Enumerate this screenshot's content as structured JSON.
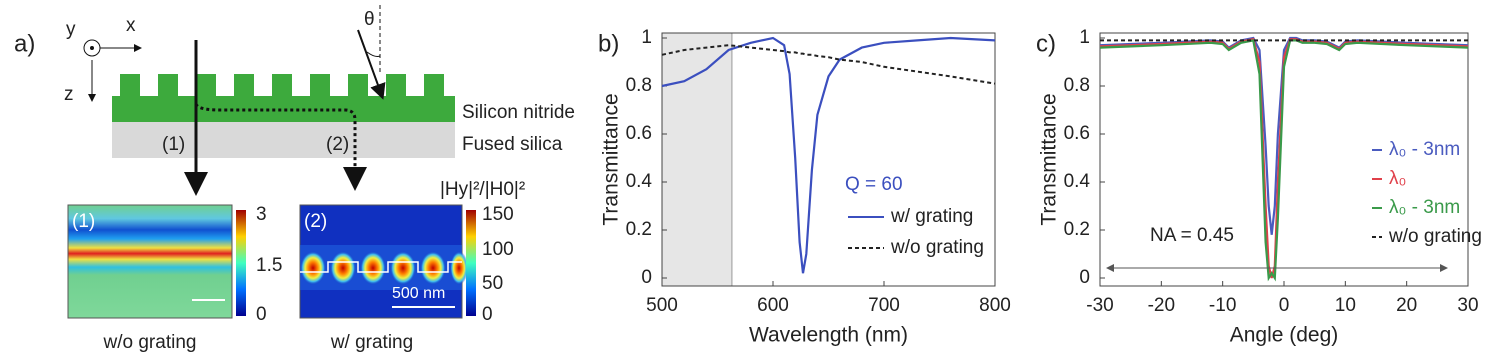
{
  "panel_a": {
    "label": "a)",
    "axis_y": "y",
    "axis_x": "x",
    "axis_z": "z",
    "angle": "θ",
    "layer_top": "Silicon nitride",
    "layer_bottom": "Fused silica",
    "path_1": "(1)",
    "path_2": "(2)",
    "map_1": {
      "tag": "(1)",
      "ticks": [
        3,
        1.5,
        0
      ],
      "caption": "w/o  grating"
    },
    "map_2": {
      "tag": "(2)",
      "ticks": [
        150,
        100,
        50,
        0
      ],
      "caption": "w/  grating",
      "scale_bar": "500 nm",
      "colorbar_title": "|Hy|²/|H0|²"
    }
  },
  "chart_data": [
    {
      "type": "line",
      "panel_label": "b)",
      "xlabel": "Wavelength (nm)",
      "ylabel": "Transmittance",
      "annotation": "Q = 60",
      "shade_x": [
        500,
        563
      ],
      "x": [
        500,
        520,
        540,
        560,
        580,
        600,
        610,
        615,
        620,
        624,
        627,
        630,
        635,
        640,
        650,
        660,
        680,
        700,
        730,
        760,
        800
      ],
      "series": [
        {
          "name": "w/ grating",
          "color": "#3b4fbf",
          "dash": false,
          "values": [
            0.8,
            0.82,
            0.87,
            0.95,
            0.98,
            1.0,
            0.97,
            0.85,
            0.5,
            0.15,
            0.02,
            0.1,
            0.45,
            0.68,
            0.84,
            0.91,
            0.96,
            0.98,
            0.99,
            1.0,
            0.99
          ]
        },
        {
          "name": "w/o grating",
          "color": "#222222",
          "dash": true,
          "values": [
            0.93,
            0.95,
            0.96,
            0.97,
            0.96,
            0.95,
            0.945,
            0.94,
            0.94,
            0.935,
            0.935,
            0.93,
            0.93,
            0.925,
            0.92,
            0.91,
            0.9,
            0.88,
            0.86,
            0.84,
            0.81
          ]
        }
      ],
      "xlim": [
        500,
        800
      ],
      "ylim": [
        0,
        1
      ],
      "xticks": [
        500,
        600,
        700,
        800
      ],
      "yticks": [
        0,
        0.2,
        0.4,
        0.6,
        0.8,
        1
      ]
    },
    {
      "type": "line",
      "panel_label": "c)",
      "xlabel": "Angle (deg)",
      "ylabel": "Transmittance",
      "annotation": "NA = 0.45",
      "x": [
        -30,
        -20,
        -12,
        -10,
        -9,
        -7,
        -5,
        -4,
        -3,
        -2.5,
        -2,
        -1.5,
        -1,
        0,
        1,
        2,
        3,
        5,
        7,
        9,
        10,
        12,
        20,
        30
      ],
      "series": [
        {
          "name": "λ₀ - 3nm",
          "color": "#4a5bbf",
          "dash": false,
          "values": [
            0.97,
            0.98,
            0.99,
            0.985,
            0.96,
            0.99,
            1.0,
            0.95,
            0.55,
            0.3,
            0.18,
            0.3,
            0.6,
            0.95,
            1.0,
            1.0,
            0.99,
            0.99,
            0.985,
            0.96,
            0.985,
            0.99,
            0.98,
            0.97
          ]
        },
        {
          "name": "λ₀",
          "color": "#e0404a",
          "dash": false,
          "values": [
            0.965,
            0.975,
            0.985,
            0.98,
            0.955,
            0.985,
            0.995,
            0.9,
            0.3,
            0.05,
            0.0,
            0.05,
            0.4,
            0.92,
            0.995,
            0.995,
            0.985,
            0.985,
            0.98,
            0.955,
            0.98,
            0.985,
            0.975,
            0.965
          ]
        },
        {
          "name": "λ₀ - 3nm",
          "color": "#3a9a4a",
          "dash": false,
          "values": [
            0.96,
            0.97,
            0.98,
            0.975,
            0.95,
            0.98,
            0.99,
            0.85,
            0.15,
            0.0,
            0.02,
            0.0,
            0.25,
            0.88,
            0.99,
            0.99,
            0.98,
            0.98,
            0.975,
            0.95,
            0.975,
            0.98,
            0.97,
            0.96
          ]
        },
        {
          "name": "w/o grating",
          "color": "#222222",
          "dash": true,
          "values": [
            0.99,
            0.99,
            0.99,
            0.99,
            0.99,
            0.99,
            0.99,
            0.99,
            0.99,
            0.99,
            0.99,
            0.99,
            0.99,
            0.99,
            0.99,
            0.99,
            0.99,
            0.99,
            0.99,
            0.99,
            0.99,
            0.99,
            0.99,
            0.99
          ]
        }
      ],
      "xlim": [
        -30,
        30
      ],
      "ylim": [
        0,
        1
      ],
      "xticks": [
        -30,
        -20,
        -10,
        0,
        10,
        20,
        30
      ],
      "yticks": [
        0,
        0.2,
        0.4,
        0.6,
        0.8,
        1
      ]
    }
  ]
}
